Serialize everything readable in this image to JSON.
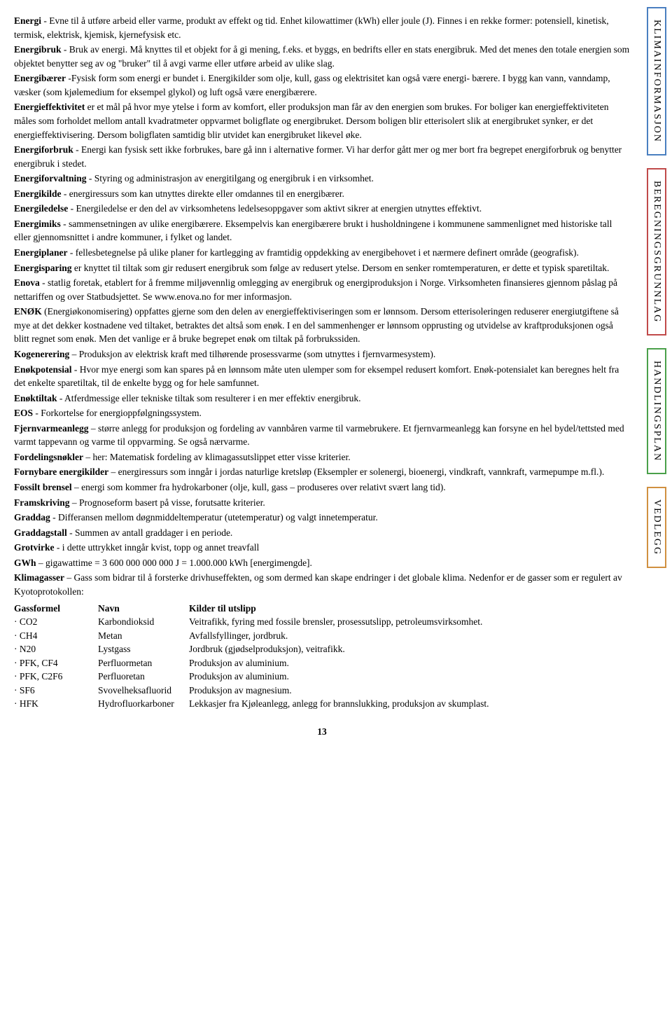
{
  "tabs": [
    {
      "label": "KLIMAINFORMASJON",
      "color": "blue"
    },
    {
      "label": "BEREGNINGSGRUNNLAG",
      "color": "red"
    },
    {
      "label": "HANDLINGSPLAN",
      "color": "green"
    },
    {
      "label": "VEDLEGG",
      "color": "orange"
    }
  ],
  "paragraphs": [
    {
      "bold": "Energi",
      "text": " - Evne til å utføre arbeid eller varme, produkt av effekt og tid. Enhet kilowattimer (kWh) eller joule (J). Finnes i en rekke former: potensiell, kinetisk, termisk, elektrisk, kjemisk, kjernefysisk etc."
    },
    {
      "bold": "Energibruk",
      "text": " - Bruk av energi. Må knyttes til et objekt for å gi mening, f.eks. et byggs, en bedrifts eller en stats energibruk. Med det menes den totale energien som objektet benytter seg av og \"bruker\" til å avgi varme eller utføre arbeid av ulike slag."
    },
    {
      "bold": "Energibærer",
      "text": " -Fysisk form som energi er bundet i. Energikilder som olje, kull, gass og elektrisitet kan også være energi- bærere. I bygg kan vann, vanndamp, væsker (som kjølemedium for eksempel glykol) og luft også være energibærere."
    },
    {
      "bold": "Energieffektivitet",
      "text": " er et mål på hvor mye ytelse i form av komfort, eller produksjon man får av den energien som brukes. For boliger kan energieffektiviteten måles som forholdet mellom antall kvadratmeter oppvarmet boligflate og energibruket. Dersom boligen blir etterisolert slik at energibruket synker, er det energieffektivisering. Dersom boligflaten samtidig blir utvidet kan energibruket likevel øke."
    },
    {
      "bold": "Energiforbruk",
      "text": " - Energi kan fysisk sett ikke forbrukes, bare gå inn i alternative former. Vi har derfor gått mer og mer bort fra begrepet energiforbruk og benytter energibruk i stedet."
    },
    {
      "bold": "Energiforvaltning",
      "text": " - Styring og administrasjon av energitilgang og energibruk i en virksomhet."
    },
    {
      "bold": "Energikilde",
      "text": " - energiressurs som kan utnyttes direkte eller omdannes til en energibærer."
    },
    {
      "bold": "Energiledelse",
      "text": " - Energiledelse er den del av virksomhetens ledelsesoppgaver som aktivt sikrer at energien utnyttes effektivt."
    },
    {
      "bold": "Energimiks",
      "text": " - sammensetningen av ulike energibærere. Eksempelvis kan energibærere brukt i husholdningene i kommunene sammenlignet med historiske tall eller gjennomsnittet i andre kommuner, i fylket og landet."
    },
    {
      "bold": "Energiplaner",
      "text": " - fellesbetegnelse på ulike planer for kartlegging av framtidig oppdekking av energibehovet i et nærmere definert område (geografisk)."
    },
    {
      "bold": "Energisparing",
      "text": " er knyttet til tiltak som gir redusert energibruk som følge av redusert ytelse. Dersom en senker romtemperaturen, er dette et typisk sparetiltak."
    },
    {
      "bold": "Enova",
      "text": " - statlig foretak, etablert for å fremme miljøvennlig omlegging av energibruk og energiproduksjon i Norge. Virksomheten finansieres gjennom påslag på nettariffen og over Statbudsjettet. Se www.enova.no for mer informasjon."
    },
    {
      "bold": "ENØK",
      "text": " (Energiøkonomisering) oppfattes gjerne som den delen av energieffektiviseringen som er lønnsom. Dersom etterisoleringen reduserer energiutgiftene så mye at det dekker kostnadene ved tiltaket, betraktes det altså som enøk. I en del sammenhenger er lønnsom opprusting og utvidelse av kraftproduksjonen også blitt regnet som enøk. Men det vanlige er å bruke begrepet enøk om tiltak på forbrukssiden."
    },
    {
      "bold": "Kogenerering",
      "text": " – Produksjon av elektrisk kraft med tilhørende prosessvarme (som utnyttes i fjernvarmesystem)."
    },
    {
      "bold": "Enøkpotensial",
      "text": " - Hvor mye energi som kan spares på en lønnsom måte uten ulemper som for eksempel redusert komfort. Enøk-potensialet kan beregnes helt fra det enkelte sparetiltak, til de enkelte bygg og for hele samfunnet."
    },
    {
      "bold": "Enøktiltak",
      "text": " - Atferdmessige eller tekniske tiltak som resulterer i en mer effektiv energibruk."
    },
    {
      "bold": "EOS",
      "text": " - Forkortelse for energioppfølgningssystem."
    },
    {
      "bold": "Fjernvarmeanlegg",
      "text": " – større anlegg for produksjon og fordeling av vannbåren varme til varmebrukere. Et fjernvarmeanlegg kan forsyne en hel bydel/tettsted med varmt tappevann og varme til oppvarming. Se også nærvarme."
    },
    {
      "bold": "Fordelingsnøkler",
      "text": " – her: Matematisk fordeling av klimagassutslippet etter visse kriterier."
    },
    {
      "bold": "Fornybare energikilder",
      "text": " – energiressurs som inngår i jordas naturlige kretsløp (Eksempler er solenergi, bioenergi, vindkraft, vannkraft, varmepumpe m.fl.)."
    },
    {
      "bold": "Fossilt brensel",
      "text": " – energi som kommer fra hydrokarboner (olje, kull, gass – produseres over relativt svært lang tid)."
    },
    {
      "bold": "Framskriving",
      "text": " – Prognoseform basert på visse, forutsatte kriterier."
    },
    {
      "bold": "Graddag",
      "text": " - Differansen mellom døgnmiddeltemperatur (utetemperatur) og valgt innetemperatur."
    },
    {
      "bold": "Graddagstall",
      "text": " - Summen av antall graddager i en periode."
    },
    {
      "bold": "Grotvirke",
      "text": " - i dette uttrykket inngår kvist, topp og annet treavfall"
    },
    {
      "bold": "GWh",
      "text": " – gigawattime = 3 600 000 000 000 J = 1.000.000 kWh [energimengde]."
    },
    {
      "bold": "Klimagasser",
      "text": " – Gass som bidrar til å forsterke drivhuseffekten, og som dermed kan skape endringer i det globale klima. Nedenfor er de gasser som er regulert av Kyotoprotokollen:"
    }
  ],
  "gasTable": {
    "headers": {
      "col1": "Gassformel",
      "col2": "Navn",
      "col3": "Kilder til utslipp"
    },
    "rows": [
      {
        "col1": "· CO2",
        "col2": "Karbondioksid",
        "col3": "Veitrafikk, fyring med fossile brensler, prosessutslipp, petroleumsvirksomhet."
      },
      {
        "col1": "· CH4",
        "col2": "Metan",
        "col3": "Avfallsfyllinger, jordbruk."
      },
      {
        "col1": "· N20",
        "col2": "Lystgass",
        "col3": "Jordbruk (gjødselproduksjon), veitrafikk."
      },
      {
        "col1": "· PFK, CF4",
        "col2": "Perfluormetan",
        "col3": "Produksjon av aluminium."
      },
      {
        "col1": "· PFK, C2F6",
        "col2": "Perfluoretan",
        "col3": "Produksjon av aluminium."
      },
      {
        "col1": "· SF6",
        "col2": "Svovelheksafluorid",
        "col3": "Produksjon av magnesium."
      },
      {
        "col1": "· HFK",
        "col2": "Hydrofluorkarboner",
        "col3": "Lekkasjer fra Kjøleanlegg, anlegg for brannslukking, produksjon av skumplast."
      }
    ]
  },
  "pageNumber": "13"
}
